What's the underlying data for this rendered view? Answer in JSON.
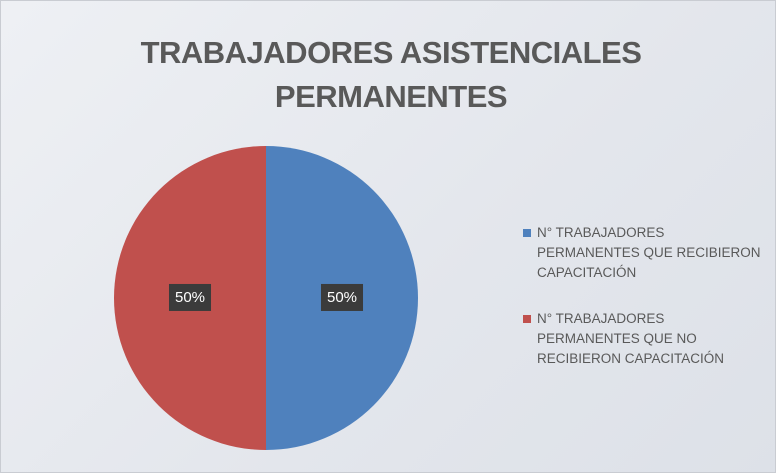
{
  "chart_data": {
    "type": "pie",
    "title": "TRABAJADORES ASISTENCIALES PERMANENTES",
    "categories": [
      "N° TRABAJADORES PERMANENTES QUE RECIBIERON CAPACITACIÓN",
      "N° TRABAJADORES PERMANENTES QUE NO RECIBIERON CAPACITACIÓN"
    ],
    "values": [
      50,
      50
    ],
    "value_labels": [
      "50%",
      "50%"
    ],
    "colors": [
      "#4f81bd",
      "#c0504d"
    ],
    "legend": "right"
  }
}
